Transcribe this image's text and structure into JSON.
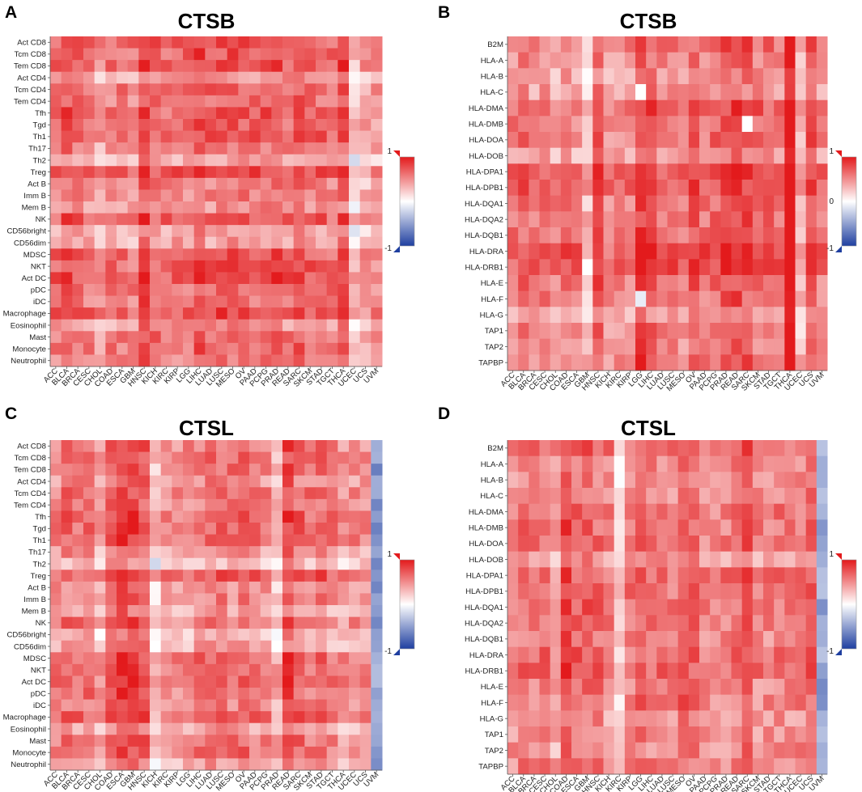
{
  "colors": {
    "positive": "#e31a1c",
    "neutral": "#ffffff",
    "negative": "#1f3fa0"
  },
  "chart_data": [
    {
      "type": "heatmap",
      "panel": "A",
      "title": "CTSB",
      "colorbar": {
        "min": -1,
        "max": 1,
        "labels": [
          "1",
          "-1"
        ]
      },
      "rows": [
        "Act CD8",
        "Tcm CD8",
        "Tem CD8",
        "Act CD4",
        "Tcm CD4",
        "Tem CD4",
        "Tfh",
        "Tgd",
        "Th1",
        "Th17",
        "Th2",
        "Treg",
        "Act B",
        "Imm B",
        "Mem B",
        "NK",
        "CD56bright",
        "CD56dim",
        "MDSC",
        "NKT",
        "Act DC",
        "pDC",
        "iDC",
        "Macrophage",
        "Eosinophil",
        "Mast",
        "Monocyte",
        "Neutrophil"
      ],
      "columns": [
        "ACC",
        "BLCA",
        "BRCA",
        "CESC",
        "CHOL",
        "COAD",
        "ESCA",
        "GBM",
        "HNSC",
        "KICH",
        "KIRC",
        "KIRP",
        "LGG",
        "LIHC",
        "LUAD",
        "LUSC",
        "MESO",
        "OV",
        "PAAD",
        "PCPG",
        "PRAD",
        "READ",
        "SARC",
        "SKCM",
        "STAD",
        "TGCT",
        "THCA",
        "UCEC",
        "UCS",
        "UVM"
      ],
      "column_profile": [
        0.4,
        0.55,
        0.45,
        0.4,
        0.25,
        0.4,
        0.4,
        0.35,
        0.62,
        0.45,
        0.4,
        0.45,
        0.4,
        0.55,
        0.45,
        0.5,
        0.5,
        0.5,
        0.45,
        0.5,
        0.55,
        0.45,
        0.55,
        0.45,
        0.45,
        0.4,
        0.6,
        0.05,
        0.2,
        0.25
      ],
      "row_profile": [
        0.25,
        0.25,
        0.25,
        0.0,
        0.2,
        0.15,
        0.25,
        0.2,
        0.25,
        0.1,
        -0.1,
        0.3,
        0.1,
        0.1,
        0.0,
        0.25,
        -0.05,
        -0.05,
        0.25,
        0.25,
        0.3,
        0.2,
        0.15,
        0.3,
        0.0,
        0.2,
        0.2,
        0.1
      ],
      "special_cells": [],
      "uniform_columns": []
    },
    {
      "type": "heatmap",
      "panel": "B",
      "title": "CTSB",
      "colorbar": {
        "min": -1,
        "max": 1,
        "labels": [
          "1",
          "0",
          "-1"
        ]
      },
      "rows": [
        "B2M",
        "HLA-A",
        "HLA-B",
        "HLA-C",
        "HLA-DMA",
        "HLA-DMB",
        "HLA-DOA",
        "HLA-DOB",
        "HLA-DPA1",
        "HLA-DPB1",
        "HLA-DQA1",
        "HLA-DQA2",
        "HLA-DQB1",
        "HLA-DRA",
        "HLA-DRB1",
        "HLA-E",
        "HLA-F",
        "HLA-G",
        "TAP1",
        "TAP2",
        "TAPBP"
      ],
      "columns": [
        "ACC",
        "BLCA",
        "BRCA",
        "CESC",
        "CHOL",
        "COAD",
        "ESCA",
        "GBM",
        "HNSC",
        "KICH",
        "KIRC",
        "KIRP",
        "LGG",
        "LIHC",
        "LUAD",
        "LUSC",
        "MESO",
        "OV",
        "PAAD",
        "PCPG",
        "PRAD",
        "READ",
        "SARC",
        "SKCM",
        "STAD",
        "TGCT",
        "THCA",
        "UCEC",
        "UCS",
        "UVM"
      ],
      "column_profile": [
        0.4,
        0.45,
        0.35,
        0.4,
        0.3,
        0.4,
        0.35,
        0.1,
        0.55,
        0.3,
        0.35,
        0.35,
        0.65,
        0.55,
        0.45,
        0.45,
        0.4,
        0.5,
        0.4,
        0.45,
        0.55,
        0.6,
        0.55,
        0.45,
        0.45,
        0.4,
        0.9,
        0.15,
        0.55,
        0.35
      ],
      "row_profile": [
        0.2,
        0.1,
        0.05,
        0.05,
        0.25,
        0.2,
        0.2,
        0.0,
        0.3,
        0.3,
        0.2,
        0.2,
        0.2,
        0.35,
        0.3,
        0.2,
        0.15,
        0.0,
        0.1,
        0.1,
        0.2
      ],
      "special_cells": [
        {
          "row": 5,
          "col": 22,
          "value": 0.0
        },
        {
          "row": 14,
          "col": 7,
          "value": 0.0
        },
        {
          "row": 3,
          "col": 12,
          "value": 0.0
        },
        {
          "row": 16,
          "col": 12,
          "value": -0.1
        }
      ],
      "uniform_columns": []
    },
    {
      "type": "heatmap",
      "panel": "C",
      "title": "CTSL",
      "colorbar": {
        "min": -1,
        "max": 1,
        "labels": [
          "1",
          "-1"
        ]
      },
      "rows": [
        "Act CD8",
        "Tcm CD8",
        "Tem CD8",
        "Act CD4",
        "Tcm CD4",
        "Tem CD4",
        "Tfh",
        "Tgd",
        "Th1",
        "Th17",
        "Th2",
        "Treg",
        "Act B",
        "Imm B",
        "Mem B",
        "NK",
        "CD56bright",
        "CD56dim",
        "MDSC",
        "NKT",
        "Act DC",
        "pDC",
        "iDC",
        "Macrophage",
        "Eosinophil",
        "Mast",
        "Monocyte",
        "Neutrophil"
      ],
      "columns": [
        "ACC",
        "BLCA",
        "BRCA",
        "CESC",
        "CHOL",
        "COAD",
        "ESCA",
        "GBM",
        "HNSC",
        "KICH",
        "KIRC",
        "KIRP",
        "LGG",
        "LIHC",
        "LUAD",
        "LUSC",
        "MESO",
        "OV",
        "PAAD",
        "PCPG",
        "PRAD",
        "READ",
        "SARC",
        "SKCM",
        "STAD",
        "TGCT",
        "THCA",
        "UCEC",
        "UCS",
        "UVM"
      ],
      "column_profile": [
        0.35,
        0.45,
        0.4,
        0.45,
        0.2,
        0.55,
        0.65,
        0.6,
        0.55,
        0.05,
        0.3,
        0.3,
        0.3,
        0.4,
        0.45,
        0.45,
        0.4,
        0.45,
        0.4,
        0.35,
        0.15,
        0.6,
        0.45,
        0.4,
        0.45,
        0.35,
        0.25,
        0.3,
        0.3,
        -0.5
      ],
      "row_profile": [
        0.2,
        0.2,
        0.2,
        0.1,
        0.2,
        0.15,
        0.25,
        0.25,
        0.25,
        0.05,
        -0.1,
        0.3,
        0.1,
        0.1,
        0.0,
        0.2,
        -0.05,
        0.0,
        0.25,
        0.25,
        0.25,
        0.2,
        0.15,
        0.25,
        0.0,
        0.2,
        0.2,
        0.0
      ],
      "special_cells": [],
      "uniform_columns": [
        29
      ]
    },
    {
      "type": "heatmap",
      "panel": "D",
      "title": "CTSL",
      "colorbar": {
        "min": -1,
        "max": 1,
        "labels": [
          "1",
          "-1"
        ]
      },
      "rows": [
        "B2M",
        "HLA-A",
        "HLA-B",
        "HLA-C",
        "HLA-DMA",
        "HLA-DMB",
        "HLA-DOA",
        "HLA-DOB",
        "HLA-DPA1",
        "HLA-DPB1",
        "HLA-DQA1",
        "HLA-DQA2",
        "HLA-DQB1",
        "HLA-DRA",
        "HLA-DRB1",
        "HLA-E",
        "HLA-F",
        "HLA-G",
        "TAP1",
        "TAP2",
        "TAPBP"
      ],
      "columns": [
        "ACC",
        "BLCA",
        "BRCA",
        "CESC",
        "CHOL",
        "COAD",
        "ESCA",
        "GBM",
        "HNSC",
        "KICH",
        "KIRC",
        "KIRP",
        "LGG",
        "LIHC",
        "LUAD",
        "LUSC",
        "MESO",
        "OV",
        "PAAD",
        "PCPG",
        "PRAD",
        "READ",
        "SARC",
        "SKCM",
        "STAD",
        "TGCT",
        "THCA",
        "UCEC",
        "UCS",
        "UVM"
      ],
      "column_profile": [
        0.35,
        0.45,
        0.4,
        0.4,
        0.25,
        0.6,
        0.45,
        0.5,
        0.45,
        0.35,
        0.0,
        0.35,
        0.5,
        0.4,
        0.4,
        0.35,
        0.55,
        0.45,
        0.35,
        0.3,
        0.35,
        0.45,
        0.55,
        0.35,
        0.35,
        0.4,
        0.4,
        0.4,
        0.5,
        -0.45
      ],
      "row_profile": [
        0.25,
        0.15,
        0.1,
        0.1,
        0.2,
        0.2,
        0.2,
        0.05,
        0.25,
        0.25,
        0.2,
        0.2,
        0.15,
        0.25,
        0.25,
        0.15,
        0.15,
        0.05,
        0.1,
        0.1,
        0.15
      ],
      "special_cells": [],
      "uniform_columns": [
        29
      ]
    }
  ]
}
